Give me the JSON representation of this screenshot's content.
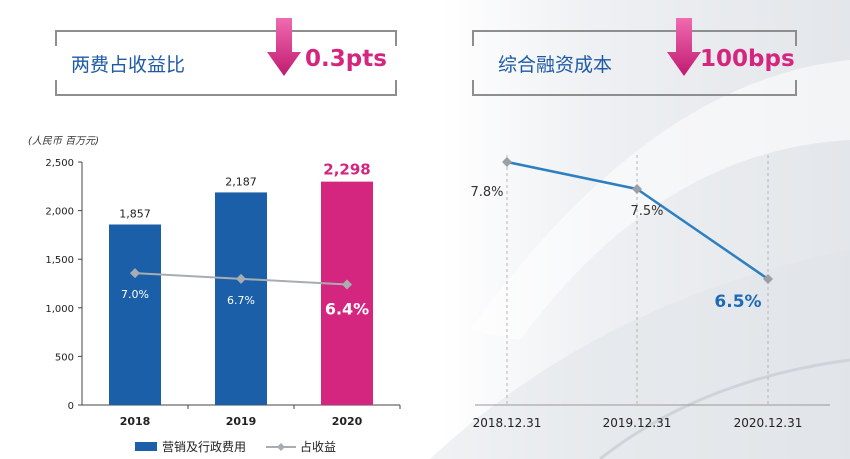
{
  "kpis": [
    {
      "label": "两费占收益比",
      "value": "0.3pts",
      "direction": "down",
      "arrow_color": "#d4257f"
    },
    {
      "label": "综合融资成本",
      "value": "100bps",
      "direction": "down",
      "arrow_color": "#d4257f"
    }
  ],
  "colors": {
    "accent": "#d4257f",
    "bar_blue": "#1a5fa8",
    "line_gray": "#a8adb3",
    "line_blue": "#2c7fc0",
    "kpi_label": "#1f5aa6"
  },
  "chart_data": [
    {
      "type": "bar",
      "unit_label": "(人民币 百万元)",
      "categories": [
        "2018",
        "2019",
        "2020"
      ],
      "series": [
        {
          "name": "营销及行政费用",
          "values": [
            1857,
            2187,
            2298
          ],
          "value_labels": [
            "1,857",
            "2,187",
            "2,298"
          ]
        },
        {
          "name": "占收益",
          "type": "line",
          "values": [
            7.0,
            6.7,
            6.4
          ],
          "value_labels": [
            "7.0%",
            "6.7%",
            "6.4%"
          ],
          "secondary_axis": true
        }
      ],
      "ylim": [
        0,
        2500
      ],
      "yticks": [
        0,
        500,
        1000,
        1500,
        2000,
        2500
      ],
      "ytick_labels": [
        "0",
        "500",
        "1,000",
        "1,500",
        "2,000",
        "2,500"
      ],
      "highlight_index": 2,
      "legend_position": "bottom"
    },
    {
      "type": "line",
      "categories": [
        "2018.12.31",
        "2019.12.31",
        "2020.12.31"
      ],
      "values": [
        7.8,
        7.5,
        6.5
      ],
      "value_labels": [
        "7.8%",
        "7.5%",
        "6.5%"
      ],
      "highlight_index": 2,
      "grid": "vertical dashed"
    }
  ]
}
